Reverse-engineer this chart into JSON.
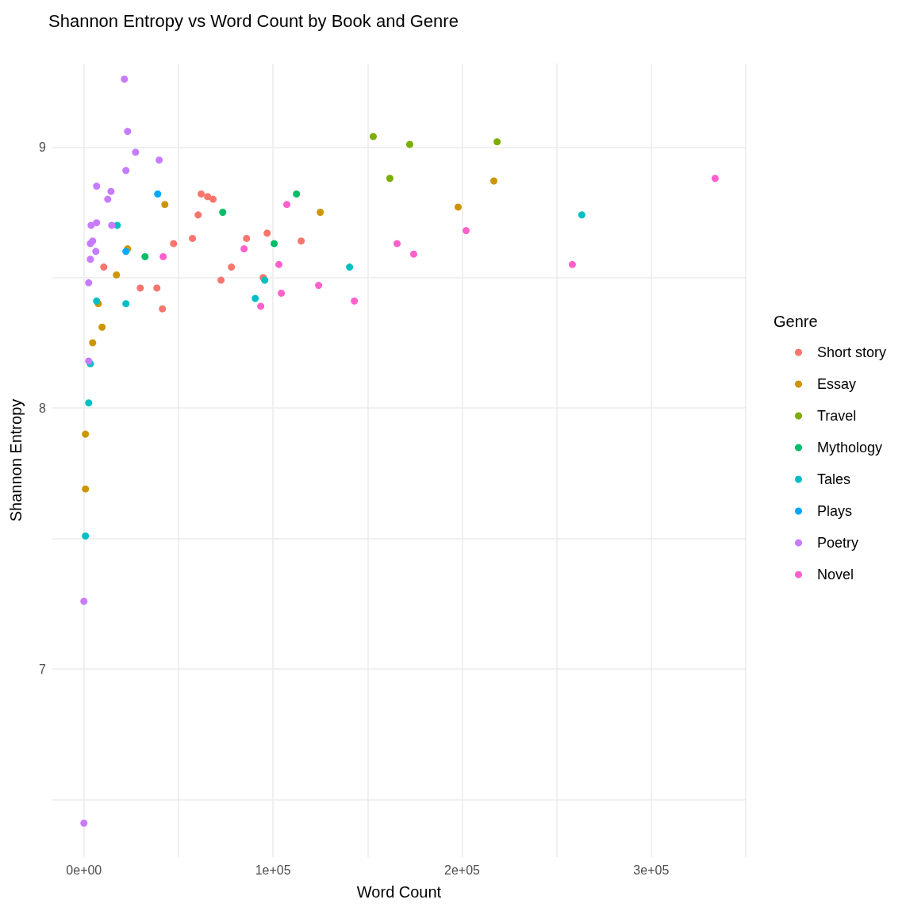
{
  "chart_data": {
    "type": "scatter",
    "title": "Shannon Entropy vs Word Count by Book and Genre",
    "xlabel": "Word Count",
    "ylabel": "Shannon Entropy",
    "legend_title": "Genre",
    "legend": "right",
    "grid": true,
    "marker": "circle",
    "xlim": [
      -16700,
      350000
    ],
    "ylim": [
      6.28,
      9.32
    ],
    "xticks": [
      {
        "value": 0,
        "label": "0e+00"
      },
      {
        "value": 50000,
        "label": null
      },
      {
        "value": 100000,
        "label": "1e+05"
      },
      {
        "value": 150000,
        "label": null
      },
      {
        "value": 200000,
        "label": "2e+05"
      },
      {
        "value": 250000,
        "label": null
      },
      {
        "value": 300000,
        "label": "3e+05"
      },
      {
        "value": 350000,
        "label": null
      }
    ],
    "yticks": [
      {
        "value": 6.5,
        "label": null
      },
      7,
      {
        "value": 7.5,
        "label": null
      },
      8,
      {
        "value": 8.5,
        "label": null
      },
      9
    ],
    "series": [
      {
        "name": "Short story",
        "color": "#f8766d",
        "x": [
          10500,
          29800,
          38600,
          41500,
          47400,
          57400,
          60400,
          62000,
          65400,
          68300,
          72500,
          78000,
          86000,
          96900,
          94800,
          114900
        ],
        "values": [
          8.54,
          8.46,
          8.46,
          8.38,
          8.63,
          8.65,
          8.74,
          8.82,
          8.81,
          8.8,
          8.49,
          8.54,
          8.65,
          8.67,
          8.5,
          8.64
        ]
      },
      {
        "name": "Essay",
        "color": "#cd9600",
        "x": [
          42800,
          23100,
          17200,
          7600,
          9600,
          4600,
          800,
          800,
          125000,
          197900,
          216800
        ],
        "values": [
          8.78,
          8.61,
          8.51,
          8.4,
          8.31,
          8.25,
          7.9,
          7.69,
          8.75,
          8.77,
          8.87
        ]
      },
      {
        "name": "Travel",
        "color": "#7cae00",
        "x": [
          153000,
          172300,
          161800,
          218500
        ],
        "values": [
          9.04,
          9.01,
          8.88,
          9.02
        ]
      },
      {
        "name": "Mythology",
        "color": "#00be67",
        "x": [
          32300,
          73400,
          112400,
          100600
        ],
        "values": [
          8.58,
          8.75,
          8.82,
          8.63
        ]
      },
      {
        "name": "Tales",
        "color": "#00bfc4",
        "x": [
          17600,
          6700,
          22200,
          4600,
          3400,
          2500,
          800,
          95600,
          90600,
          140500,
          263300
        ],
        "values": [
          8.7,
          8.41,
          8.4,
          null,
          8.17,
          8.02,
          7.51,
          8.49,
          8.42,
          8.54,
          8.74
        ]
      },
      {
        "name": "Plays",
        "color": "#00a9ff",
        "x": [
          39000,
          22200
        ],
        "values": [
          8.82,
          8.6
        ]
      },
      {
        "name": "Poetry",
        "color": "#c77cff",
        "x": [
          21400,
          23100,
          27300,
          39800,
          22200,
          6700,
          14300,
          12600,
          3800,
          6700,
          14700,
          3400,
          4600,
          6300,
          3400,
          2500,
          2500,
          0,
          0
        ],
        "values": [
          9.26,
          9.06,
          8.98,
          8.95,
          8.91,
          8.85,
          8.83,
          8.8,
          8.7,
          8.71,
          8.7,
          8.63,
          8.64,
          8.6,
          8.57,
          8.48,
          8.18,
          7.26,
          6.41
        ]
      },
      {
        "name": "Novel",
        "color": "#ff61cc",
        "x": [
          41900,
          107300,
          84700,
          103100,
          124100,
          104400,
          93500,
          143000,
          165600,
          174400,
          202100,
          258300,
          333800
        ],
        "values": [
          8.58,
          8.78,
          8.61,
          8.55,
          8.47,
          8.44,
          8.39,
          8.41,
          8.63,
          8.59,
          8.68,
          8.55,
          8.88
        ]
      }
    ]
  }
}
